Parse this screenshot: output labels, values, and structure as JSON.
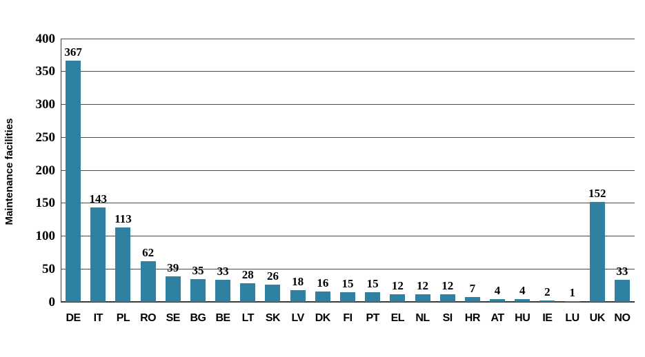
{
  "chart_data": {
    "type": "bar",
    "title": "",
    "xlabel": "",
    "ylabel": "Maintenance facilities",
    "categories": [
      "DE",
      "IT",
      "PL",
      "RO",
      "SE",
      "BG",
      "BE",
      "LT",
      "SK",
      "LV",
      "DK",
      "FI",
      "PT",
      "EL",
      "NL",
      "SI",
      "HR",
      "AT",
      "HU",
      "IE",
      "LU",
      "UK",
      "NO"
    ],
    "values": [
      367,
      143,
      113,
      62,
      39,
      35,
      33,
      28,
      26,
      18,
      16,
      15,
      15,
      12,
      12,
      12,
      7,
      4,
      4,
      2,
      1,
      152,
      33
    ],
    "data_labels_shown": true,
    "ylim": [
      0,
      400
    ],
    "yticks": [
      0,
      50,
      100,
      150,
      200,
      250,
      300,
      350,
      400
    ],
    "grid": "horizontal",
    "legend_position": "none",
    "bar_color": "#2E81A0",
    "gridline_color": "#4a4a4a",
    "axis_color": "#3a3a3a",
    "text_color": "#000000",
    "background_color": "#ffffff"
  }
}
